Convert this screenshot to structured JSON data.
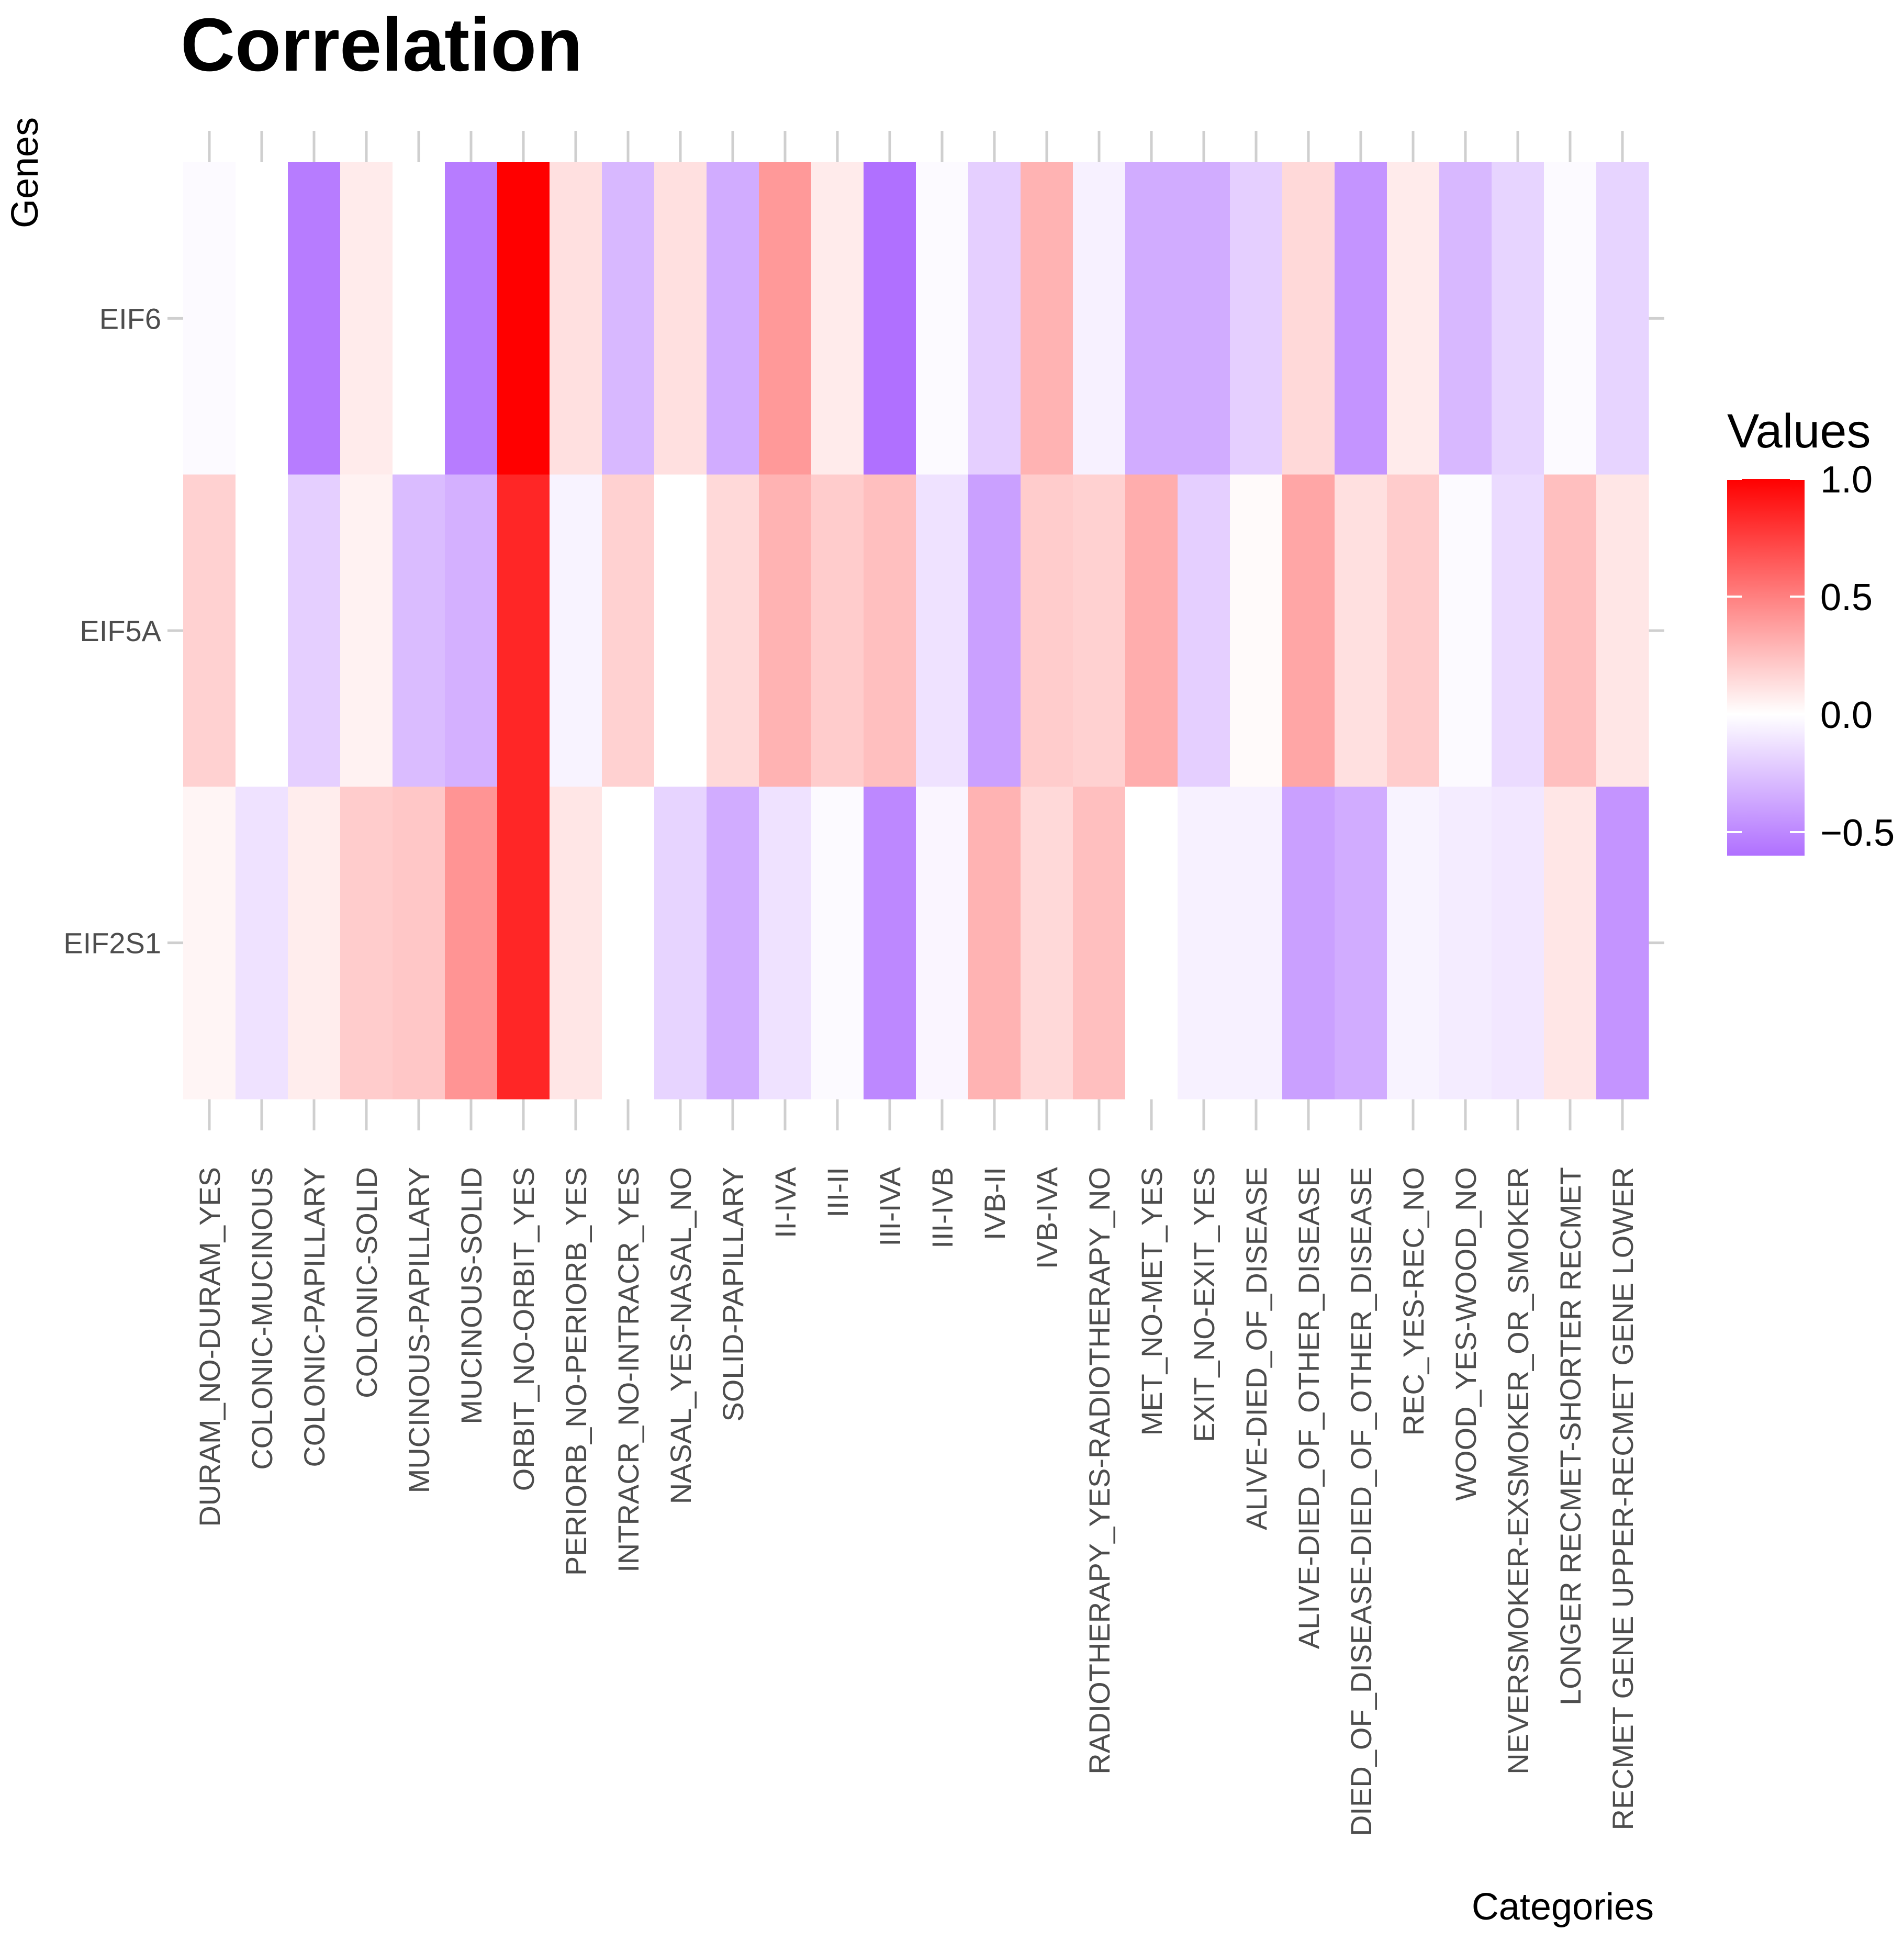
{
  "chart_data": {
    "type": "heatmap",
    "title": "Correlation",
    "xlabel": "Categories",
    "ylabel": "Genes",
    "categories": [
      "DURAM_NO-DURAM_YES",
      "COLONIC-MUCINOUS",
      "COLONIC-PAPILLARY",
      "COLONIC-SOLID",
      "MUCINOUS-PAPILLARY",
      "MUCINOUS-SOLID",
      "ORBIT_NO-ORBIT_YES",
      "PERIORB_NO-PERIORB_YES",
      "INTRACR_NO-INTRACR_YES",
      "NASAL_YES-NASAL_NO",
      "SOLID-PAPILLARY",
      "II-IVA",
      "III-II",
      "III-IVA",
      "III-IVB",
      "IVB-II",
      "IVB-IVA",
      "RADIOTHERAPY_YES-RADIOTHERAPY_NO",
      "MET_NO-MET_YES",
      "EXIT_NO-EXIT_YES",
      "ALIVE-DIED_OF_DISEASE",
      "ALIVE-DIED_OF_OTHER_DISEASE",
      "DIED_OF_DISEASE-DIED_OF_OTHER_DISEASE",
      "REC_YES-REC_NO",
      "WOOD_YES-WOOD_NO",
      "NEVERSMOKER-EXSMOKER_OR_SMOKER",
      "LONGER RECMET-SHORTER RECMET",
      "RECMET GENE UPPER-RECMET GENE LOWER"
    ],
    "genes": [
      "EIF6",
      "EIF5A",
      "EIF2S1"
    ],
    "values": [
      [
        -0.02,
        0.0,
        -0.55,
        0.08,
        0.0,
        -0.55,
        1.0,
        0.12,
        -0.3,
        0.12,
        -0.35,
        0.4,
        0.08,
        -0.6,
        -0.02,
        -0.2,
        0.3,
        -0.06,
        -0.35,
        -0.35,
        -0.2,
        0.15,
        -0.45,
        0.08,
        -0.3,
        -0.18,
        -0.02,
        -0.18
      ],
      [
        0.18,
        0.0,
        -0.2,
        0.05,
        -0.28,
        -0.33,
        0.85,
        -0.05,
        0.18,
        0.0,
        0.15,
        0.3,
        0.2,
        0.25,
        -0.12,
        -0.4,
        0.2,
        0.18,
        0.32,
        -0.2,
        0.02,
        0.35,
        0.12,
        0.2,
        -0.02,
        -0.15,
        0.25,
        0.1
      ],
      [
        0.04,
        -0.12,
        0.07,
        0.2,
        0.22,
        0.42,
        0.85,
        0.1,
        0.0,
        -0.18,
        -0.35,
        -0.12,
        -0.02,
        -0.5,
        -0.04,
        0.3,
        0.15,
        0.25,
        0.0,
        -0.06,
        -0.06,
        -0.4,
        -0.35,
        -0.05,
        -0.08,
        -0.1,
        0.1,
        -0.45
      ]
    ],
    "colorscale": {
      "low_color": "#b070ff",
      "mid_color": "#ffffff",
      "high_color": "#ff0000",
      "range": [
        -0.6,
        1.0
      ]
    },
    "legend": {
      "title": "Values",
      "ticks": [
        1.0,
        0.5,
        0.0,
        -0.5
      ],
      "tick_labels": [
        "1.0",
        "0.5",
        "0.0",
        "−0.5"
      ],
      "placement": "right"
    },
    "grid": true
  }
}
